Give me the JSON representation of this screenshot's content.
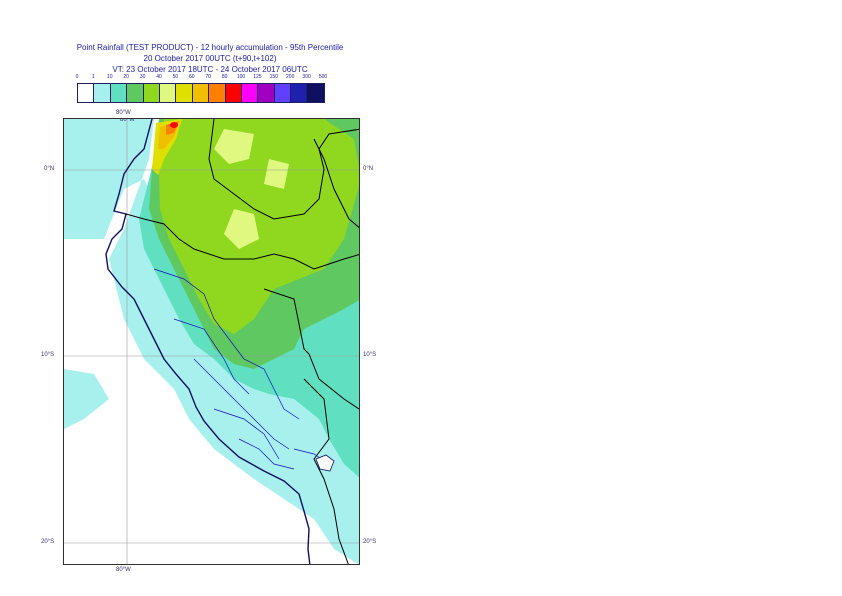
{
  "title": {
    "line1": "Point Rainfall (TEST PRODUCT) - 12 hourly accumulation - 95th Percentile",
    "line2": "20 October 2017 00UTC (t+90,t+102)",
    "line3": "VT: 23 October 2017 18UTC - 24 October 2017 06UTC"
  },
  "legend": {
    "ticks": [
      "0",
      "1",
      "10",
      "20",
      "30",
      "40",
      "50",
      "60",
      "70",
      "80",
      "100",
      "125",
      "150",
      "200",
      "300",
      "500"
    ],
    "colors": [
      "#ffffff",
      "#a8f0ee",
      "#60e0c0",
      "#60c860",
      "#90d820",
      "#e0f880",
      "#e0e000",
      "#f0c000",
      "#ff8000",
      "#ff0000",
      "#ff00ff",
      "#a000c0",
      "#6040ff",
      "#2020b0",
      "#101060"
    ]
  },
  "map": {
    "grid_labels": {
      "lon_top": "80°W",
      "lon_bottom": "80°W",
      "lat_0_left": "0°N",
      "lat_0_right": "0°N",
      "lat_10_left": "10°S",
      "lat_10_right": "10°S",
      "lat_20_left": "20°S",
      "lat_20_right": "20°S"
    }
  }
}
